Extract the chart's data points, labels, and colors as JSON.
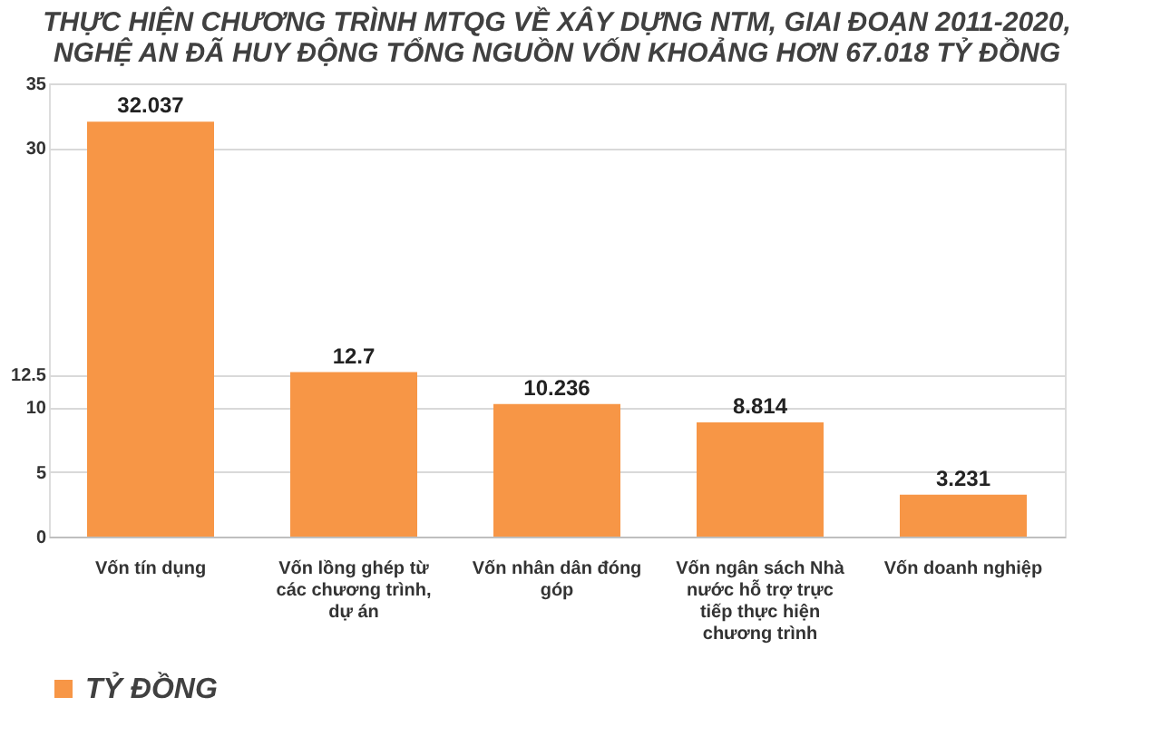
{
  "chart_data": {
    "type": "bar",
    "title": "THỰC HIỆN CHƯƠNG TRÌNH MTQG VỀ XÂY DỰNG NTM, GIAI ĐOẠN 2011-2020, NGHỆ AN ĐÃ HUY ĐỘNG TỔNG NGUỒN VỐN KHOẢNG HƠN 67.018 TỶ ĐỒNG",
    "categories": [
      "Vốn tín dụng",
      "Vốn lồng ghép từ các chương trình, dự án",
      "Vốn nhân dân đóng góp",
      "Vốn ngân sách Nhà nước hỗ trợ trực tiếp thực hiện chương trình",
      "Vốn doanh nghiệp"
    ],
    "series": [
      {
        "name": "TỶ ĐỒNG",
        "color": "#f79646",
        "values": [
          32.037,
          12.7,
          10.236,
          8.814,
          3.231
        ]
      }
    ],
    "ylim": [
      0,
      35
    ],
    "yticks": [
      0,
      5,
      10,
      12.5,
      30,
      35
    ],
    "grid": "y",
    "data_labels": true,
    "legend": "bottom"
  }
}
